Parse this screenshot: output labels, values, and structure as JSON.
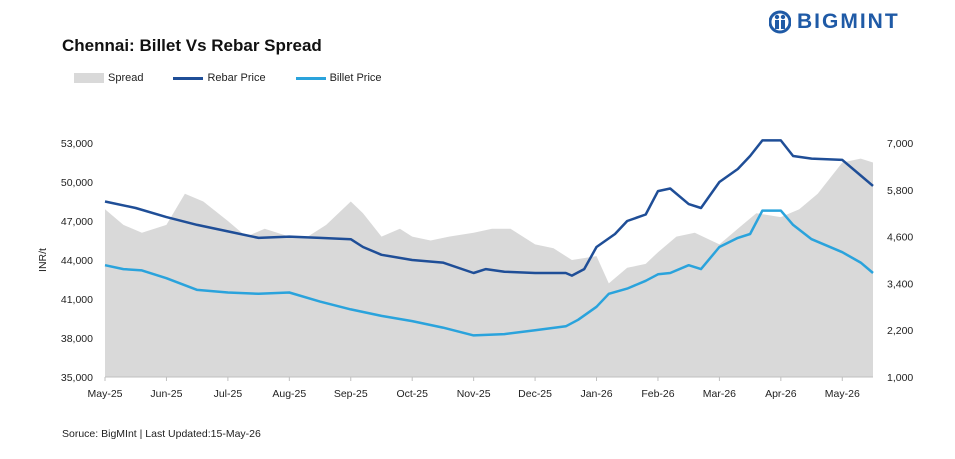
{
  "header": {
    "title": "Chennai: Billet Vs Rebar Spread",
    "brand": "BIGMINT"
  },
  "footer": {
    "source": "Soruce: BigMInt | Last Updated:15-May-26"
  },
  "colors": {
    "spread": "#d9d9d9",
    "rebar": "#1f4e97",
    "billet": "#2aa3dc",
    "brand": "#1f5aa6"
  },
  "chart_data": {
    "type": "area",
    "title": "Chennai: Billet Vs Rebar Spread",
    "ylabel": "INR/t",
    "ylim": [
      35000,
      53000
    ],
    "y_ticks": [
      "35,000",
      "38,000",
      "41,000",
      "44,000",
      "47,000",
      "50,000",
      "53,000"
    ],
    "y2lim": [
      1000,
      7000
    ],
    "y2_ticks": [
      "1,000",
      "2,200",
      "3,400",
      "4,600",
      "5,800",
      "7,000"
    ],
    "x_ticks": [
      "May-25",
      "Jun-25",
      "Jul-25",
      "Aug-25",
      "Sep-25",
      "Oct-25",
      "Nov-25",
      "Dec-25",
      "Jan-26",
      "Feb-26",
      "Mar-26",
      "Apr-26",
      "May-26"
    ],
    "x_index_range": [
      0,
      12.5
    ],
    "legend": {
      "position": "top-left",
      "entries": [
        "Spread",
        "Rebar Price",
        "Billet Price"
      ]
    },
    "grid": false,
    "series": [
      {
        "name": "Rebar Price",
        "axis": "left",
        "x": [
          0,
          0.5,
          1,
          1.5,
          2,
          2.5,
          3,
          3.5,
          4,
          4.2,
          4.5,
          5,
          5.5,
          6,
          6.2,
          6.5,
          7,
          7.5,
          7.6,
          7.8,
          8,
          8.3,
          8.5,
          8.8,
          9,
          9.2,
          9.5,
          9.7,
          10,
          10.3,
          10.5,
          10.7,
          11,
          11.2,
          11.5,
          12,
          12.3,
          12.5
        ],
        "values": [
          48500,
          48000,
          47300,
          46700,
          46200,
          45700,
          45800,
          45700,
          45600,
          45000,
          44400,
          44000,
          43800,
          43000,
          43300,
          43100,
          43000,
          43000,
          42800,
          43300,
          45000,
          46000,
          47000,
          47500,
          49300,
          49500,
          48300,
          48000,
          50000,
          51000,
          52000,
          53200,
          53200,
          52000,
          51800,
          51700,
          50500,
          49700
        ]
      },
      {
        "name": "Billet Price",
        "axis": "left",
        "x": [
          0,
          0.3,
          0.6,
          1,
          1.5,
          2,
          2.5,
          3,
          3.5,
          4,
          4.5,
          5,
          5.5,
          6,
          6.5,
          7,
          7.5,
          7.7,
          8,
          8.2,
          8.5,
          8.8,
          9,
          9.2,
          9.5,
          9.7,
          10,
          10.3,
          10.5,
          10.7,
          11,
          11.2,
          11.5,
          12,
          12.3,
          12.5
        ],
        "values": [
          43600,
          43300,
          43200,
          42600,
          41700,
          41500,
          41400,
          41500,
          40800,
          40200,
          39700,
          39300,
          38800,
          38200,
          38300,
          38600,
          38900,
          39400,
          40400,
          41400,
          41800,
          42400,
          42900,
          43000,
          43600,
          43300,
          45000,
          45700,
          46000,
          47800,
          47800,
          46700,
          45600,
          44600,
          43800,
          43000
        ]
      },
      {
        "name": "Spread",
        "axis": "right",
        "x": [
          0,
          0.3,
          0.6,
          1,
          1.3,
          1.6,
          2,
          2.3,
          2.6,
          3,
          3.3,
          3.6,
          4,
          4.2,
          4.5,
          4.8,
          5,
          5.3,
          5.6,
          6,
          6.3,
          6.6,
          7,
          7.3,
          7.6,
          8,
          8.2,
          8.5,
          8.8,
          9,
          9.3,
          9.6,
          10,
          10.3,
          10.6,
          11,
          11.3,
          11.6,
          12,
          12.3,
          12.5
        ],
        "values": [
          5300,
          4900,
          4700,
          4900,
          5700,
          5500,
          5000,
          4600,
          4800,
          4600,
          4600,
          4900,
          5500,
          5200,
          4600,
          4800,
          4600,
          4500,
          4600,
          4700,
          4800,
          4800,
          4400,
          4300,
          4000,
          4100,
          3400,
          3800,
          3900,
          4200,
          4600,
          4700,
          4400,
          4800,
          5200,
          5100,
          5300,
          5700,
          6500,
          6600,
          6500
        ]
      }
    ]
  }
}
